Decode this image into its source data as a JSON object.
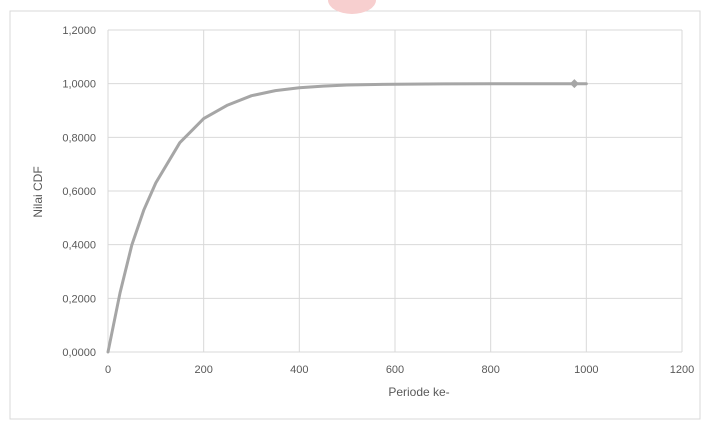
{
  "chart_data": {
    "type": "line",
    "xlabel": "Periode ke-",
    "ylabel": "Nilai CDF",
    "xlim": [
      0,
      1200
    ],
    "ylim": [
      0,
      1.2
    ],
    "x_ticks": [
      "0",
      "200",
      "400",
      "600",
      "800",
      "1000",
      "1200"
    ],
    "y_ticks": [
      "0,0000",
      "0,2000",
      "0,4000",
      "0,6000",
      "0,8000",
      "1,0000",
      "1,2000"
    ],
    "grid": true,
    "legend": "none",
    "series": [
      {
        "color": "#a6a6a6",
        "x": [
          0,
          25,
          50,
          75,
          100,
          150,
          200,
          250,
          300,
          350,
          400,
          450,
          500,
          600,
          700,
          800,
          900,
          975,
          1000
        ],
        "y": [
          0,
          0.22,
          0.4,
          0.53,
          0.63,
          0.78,
          0.87,
          0.92,
          0.955,
          0.974,
          0.985,
          0.991,
          0.995,
          0.998,
          0.999,
          1.0,
          1.0,
          1.0,
          1.0
        ],
        "marker_points": [
          [
            975,
            1.0
          ]
        ]
      }
    ]
  },
  "colors": {
    "line": "#a6a6a6",
    "marker": "#a6a6a6",
    "grid": "#d9d9d9",
    "text": "#595959",
    "accent_blob": "#f7cfcf"
  }
}
